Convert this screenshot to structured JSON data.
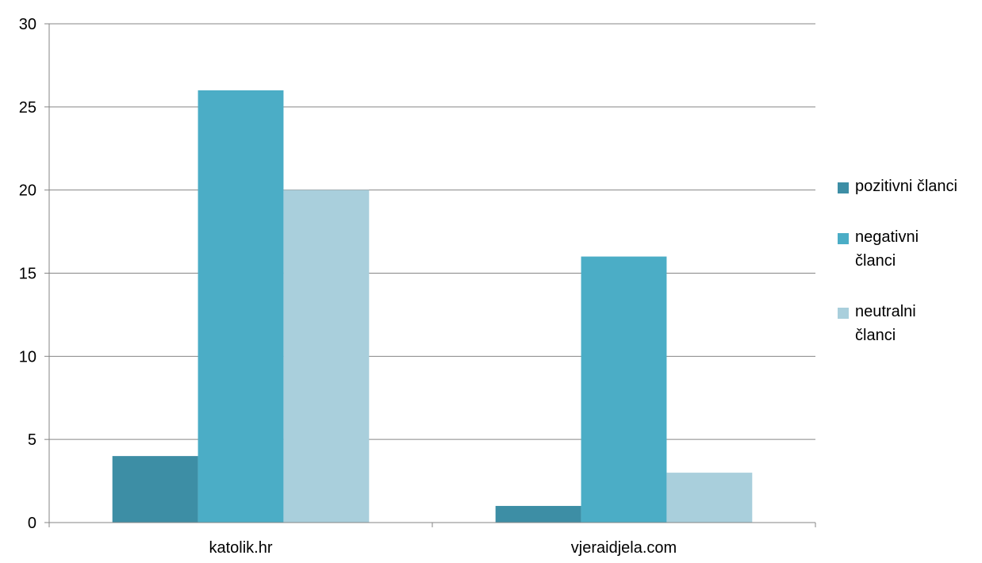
{
  "chart_data": {
    "type": "bar",
    "title": "",
    "xlabel": "",
    "ylabel": "",
    "categories": [
      "katolik.hr",
      "vjeraidjela.com"
    ],
    "series": [
      {
        "name": "pozitivni članci",
        "values": [
          4,
          1
        ],
        "color": "#3d8ea5"
      },
      {
        "name": "negativni članci",
        "values": [
          26,
          16
        ],
        "color": "#4badc6"
      },
      {
        "name": "neutralni članci",
        "values": [
          20,
          3
        ],
        "color": "#a9cfdc"
      }
    ],
    "ylim": [
      0,
      30
    ],
    "yticks": [
      "0",
      "5",
      "10",
      "15",
      "20",
      "25",
      "30"
    ],
    "grid": true,
    "gridline_color": "#868686",
    "legend_position": "right"
  }
}
